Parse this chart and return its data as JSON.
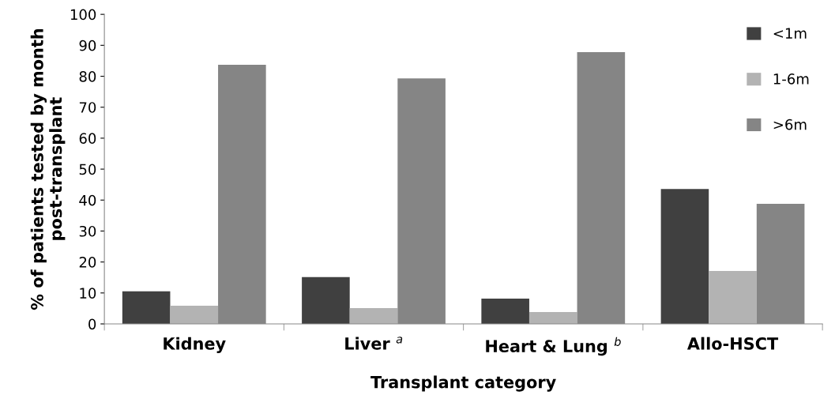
{
  "chart_data": {
    "type": "bar",
    "categories": [
      "Kidney",
      "Liver $^{a}$",
      "Heart & Lung $^{b}$",
      "Allo-HSCT"
    ],
    "series": [
      {
        "name": "<1m",
        "color": "#404040",
        "values": [
          10.5,
          15.1,
          8.2,
          43.6
        ]
      },
      {
        "name": "1-6m",
        "color": "#b3b3b3",
        "values": [
          5.9,
          5.1,
          3.8,
          17.1
        ]
      },
      {
        "name": ">6m",
        "color": "#858585",
        "values": [
          83.7,
          79.3,
          87.8,
          38.8
        ]
      }
    ],
    "xlabel": "Transplant category",
    "ylabel": "% of patients tested by month\npost-transplant",
    "ylim": [
      0,
      100
    ],
    "yticks": [
      0,
      10,
      20,
      30,
      40,
      50,
      60,
      70,
      80,
      90,
      100
    ],
    "legend": "top right",
    "grid": false
  }
}
